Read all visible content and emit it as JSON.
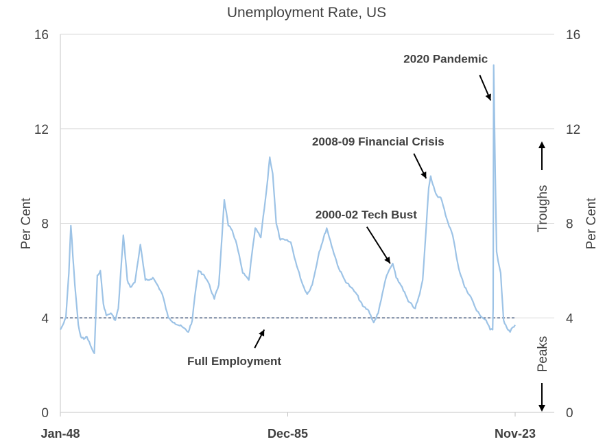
{
  "chart_data": {
    "type": "line",
    "title": "Unemployment Rate, US",
    "ylabel_left": "Per Cent",
    "ylabel_right": "Per Cent",
    "ylim": [
      0,
      16
    ],
    "yticks": [
      "0",
      "4",
      "8",
      "12",
      "16"
    ],
    "xlim": [
      "1948-01",
      "2023-11"
    ],
    "xticks": [
      "Jan-48",
      "Dec-85",
      "Nov-23"
    ],
    "grid": true,
    "series": [
      {
        "color": "#9dc3e6",
        "points": [
          [
            "1948-01",
            3.5
          ],
          [
            "1948-06",
            3.7
          ],
          [
            "1948-12",
            4.0
          ],
          [
            "1949-06",
            5.9
          ],
          [
            "1949-10",
            7.9
          ],
          [
            "1950-06",
            5.4
          ],
          [
            "1951-01",
            3.7
          ],
          [
            "1951-06",
            3.2
          ],
          [
            "1951-12",
            3.1
          ],
          [
            "1952-06",
            3.2
          ],
          [
            "1953-06",
            2.6
          ],
          [
            "1953-09",
            2.5
          ],
          [
            "1954-03",
            5.8
          ],
          [
            "1954-09",
            6.0
          ],
          [
            "1955-03",
            4.6
          ],
          [
            "1955-09",
            4.1
          ],
          [
            "1956-06",
            4.2
          ],
          [
            "1957-03",
            3.9
          ],
          [
            "1957-09",
            4.4
          ],
          [
            "1958-07",
            7.5
          ],
          [
            "1959-03",
            5.6
          ],
          [
            "1959-09",
            5.3
          ],
          [
            "1960-06",
            5.5
          ],
          [
            "1961-05",
            7.1
          ],
          [
            "1962-03",
            5.6
          ],
          [
            "1962-09",
            5.6
          ],
          [
            "1963-06",
            5.7
          ],
          [
            "1964-03",
            5.4
          ],
          [
            "1965-01",
            5.0
          ],
          [
            "1966-01",
            4.0
          ],
          [
            "1967-01",
            3.8
          ],
          [
            "1968-06",
            3.6
          ],
          [
            "1969-05",
            3.4
          ],
          [
            "1970-01",
            3.9
          ],
          [
            "1970-06",
            4.9
          ],
          [
            "1971-01",
            6.0
          ],
          [
            "1972-01",
            5.8
          ],
          [
            "1972-09",
            5.5
          ],
          [
            "1973-09",
            4.8
          ],
          [
            "1974-06",
            5.4
          ],
          [
            "1975-05",
            9.0
          ],
          [
            "1976-01",
            7.9
          ],
          [
            "1976-09",
            7.7
          ],
          [
            "1977-06",
            7.1
          ],
          [
            "1978-06",
            5.9
          ],
          [
            "1979-06",
            5.6
          ],
          [
            "1980-07",
            7.8
          ],
          [
            "1981-06",
            7.4
          ],
          [
            "1982-06",
            9.5
          ],
          [
            "1982-12",
            10.8
          ],
          [
            "1983-06",
            10.1
          ],
          [
            "1984-01",
            8.0
          ],
          [
            "1984-09",
            7.3
          ],
          [
            "1985-06",
            7.3
          ],
          [
            "1986-06",
            7.2
          ],
          [
            "1987-06",
            6.2
          ],
          [
            "1988-06",
            5.4
          ],
          [
            "1989-03",
            5.0
          ],
          [
            "1990-01",
            5.4
          ],
          [
            "1991-03",
            6.8
          ],
          [
            "1992-06",
            7.8
          ],
          [
            "1993-06",
            6.9
          ],
          [
            "1994-06",
            6.1
          ],
          [
            "1995-06",
            5.6
          ],
          [
            "1996-06",
            5.3
          ],
          [
            "1997-06",
            5.0
          ],
          [
            "1998-06",
            4.5
          ],
          [
            "1999-06",
            4.3
          ],
          [
            "2000-04",
            3.8
          ],
          [
            "2001-01",
            4.2
          ],
          [
            "2001-09",
            5.0
          ],
          [
            "2002-06",
            5.8
          ],
          [
            "2003-06",
            6.3
          ],
          [
            "2004-01",
            5.7
          ],
          [
            "2005-01",
            5.3
          ],
          [
            "2006-01",
            4.7
          ],
          [
            "2007-03",
            4.4
          ],
          [
            "2007-12",
            5.0
          ],
          [
            "2008-06",
            5.6
          ],
          [
            "2009-01",
            7.8
          ],
          [
            "2009-06",
            9.5
          ],
          [
            "2009-10",
            10.0
          ],
          [
            "2010-06",
            9.4
          ],
          [
            "2011-01",
            9.1
          ],
          [
            "2011-06",
            9.1
          ],
          [
            "2012-06",
            8.2
          ],
          [
            "2013-06",
            7.5
          ],
          [
            "2014-06",
            6.1
          ],
          [
            "2015-06",
            5.3
          ],
          [
            "2016-06",
            4.9
          ],
          [
            "2017-06",
            4.3
          ],
          [
            "2018-06",
            4.0
          ],
          [
            "2019-01",
            3.9
          ],
          [
            "2019-09",
            3.5
          ],
          [
            "2020-02",
            3.5
          ],
          [
            "2020-03",
            4.4
          ],
          [
            "2020-04",
            14.7
          ],
          [
            "2020-05",
            13.2
          ],
          [
            "2020-07",
            10.2
          ],
          [
            "2020-10",
            6.8
          ],
          [
            "2021-01",
            6.4
          ],
          [
            "2021-06",
            5.9
          ],
          [
            "2021-12",
            3.9
          ],
          [
            "2022-06",
            3.6
          ],
          [
            "2023-01",
            3.4
          ],
          [
            "2023-06",
            3.6
          ],
          [
            "2023-11",
            3.7
          ]
        ]
      }
    ],
    "reference_line": {
      "value": 4,
      "style": "dashed",
      "color": "#203864"
    },
    "annotations": [
      {
        "text": "2020 Pandemic",
        "x": "2012-04",
        "y": 14.8,
        "arrow_to": [
          "2019-10",
          13.2
        ]
      },
      {
        "text": "2008-09 Financial Crisis",
        "x": "2001-01",
        "y": 11.3,
        "arrow_to": [
          "2009-01",
          9.9
        ]
      },
      {
        "text": "2000-02 Tech Bust",
        "x": "1999-01",
        "y": 8.2,
        "arrow_to": [
          "2003-01",
          6.3
        ]
      },
      {
        "text": "Full Employment",
        "x": "1977-01",
        "y": 2.0,
        "arrow_to": [
          "1982-01",
          3.5
        ]
      }
    ],
    "side_labels": {
      "troughs": "Troughs",
      "peaks": "Peaks"
    }
  }
}
